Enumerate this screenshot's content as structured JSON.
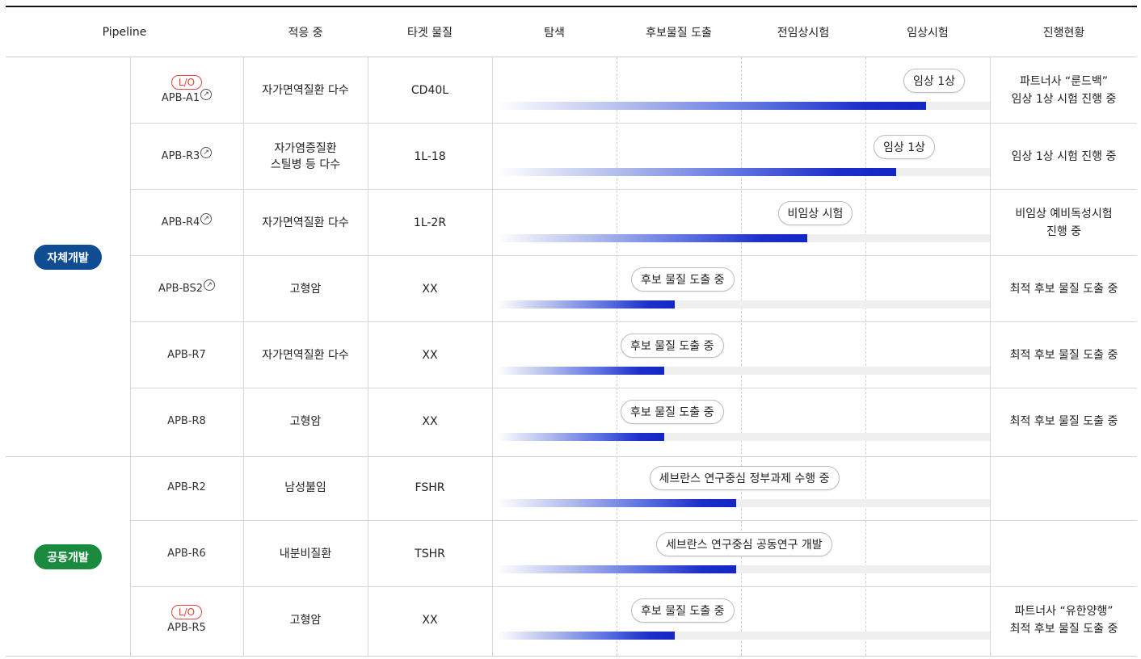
{
  "header": {
    "pipeline": "Pipeline",
    "indication": "적응 중",
    "target": "타겟 물질",
    "stage_discovery": "탐색",
    "stage_candidate": "후보물질 도출",
    "stage_preclinical": "전임상시험",
    "stage_clinical": "임상시험",
    "status": "진행현황"
  },
  "groups": [
    {
      "label": "자체개발",
      "color": "#0f4c92"
    },
    {
      "label": "공동개발",
      "color": "#1a8a3e"
    }
  ],
  "lo_label": "L/O",
  "ext_icon": "↗",
  "rows": [
    {
      "code": "APB-A1",
      "lo": true,
      "link": true,
      "indication_1": "자가면역질환 다수",
      "indication_2": "",
      "target": "CD40L",
      "progress": 0.87,
      "pill": "임상 1상",
      "status_1": "파트너사 “룬드백”",
      "status_2": "임상 1상 시험 진행 중"
    },
    {
      "code": "APB-R3",
      "lo": false,
      "link": true,
      "indication_1": "자가염증질환",
      "indication_2": "스틸병 등 다수",
      "target": "1L-18",
      "progress": 0.81,
      "pill": "임상 1상",
      "status_1": "임상 1상 시험 진행 중",
      "status_2": ""
    },
    {
      "code": "APB-R4",
      "lo": false,
      "link": true,
      "indication_1": "자가면역질환 다수",
      "indication_2": "",
      "target": "1L-2R",
      "progress": 0.63,
      "pill": "비임상 시험",
      "status_1": "비임상 예비독성시험",
      "status_2": "진행 중"
    },
    {
      "code": "APB-BS2",
      "lo": false,
      "link": true,
      "indication_1": "고형암",
      "indication_2": "",
      "target": "XX",
      "progress": 0.36,
      "pill": "후보 물질 도출 중",
      "status_1": "최적 후보 물질 도출 중",
      "status_2": ""
    },
    {
      "code": "APB-R7",
      "lo": false,
      "link": false,
      "indication_1": "자가면역질환 다수",
      "indication_2": "",
      "target": "XX",
      "progress": 0.34,
      "pill": "후보 물질 도출 중",
      "status_1": "최적 후보 물질 도출 중",
      "status_2": ""
    },
    {
      "code": "APB-R8",
      "lo": false,
      "link": false,
      "indication_1": "고형암",
      "indication_2": "",
      "target": "XX",
      "progress": 0.34,
      "pill": "후보 물질 도출 중",
      "status_1": "최적 후보 물질 도출 중",
      "status_2": ""
    },
    {
      "code": "APB-R2",
      "lo": false,
      "link": false,
      "indication_1": "남성불임",
      "indication_2": "",
      "target": "FSHR",
      "progress": 0.485,
      "pill": "세브란스 연구중심 정부과제 수행 중",
      "status_1": "",
      "status_2": ""
    },
    {
      "code": "APB-R6",
      "lo": false,
      "link": false,
      "indication_1": "내분비질환",
      "indication_2": "",
      "target": "TSHR",
      "progress": 0.485,
      "pill": "세브란스 연구중심 공동연구 개발",
      "status_1": "",
      "status_2": ""
    },
    {
      "code": "APB-R5",
      "lo": true,
      "link": false,
      "indication_1": "고형암",
      "indication_2": "",
      "target": "XX",
      "progress": 0.36,
      "pill": "후보 물질 도출 중",
      "status_1": "파트너사 “유한양행”",
      "status_2": "최적 후보 물질 도출 중"
    }
  ]
}
